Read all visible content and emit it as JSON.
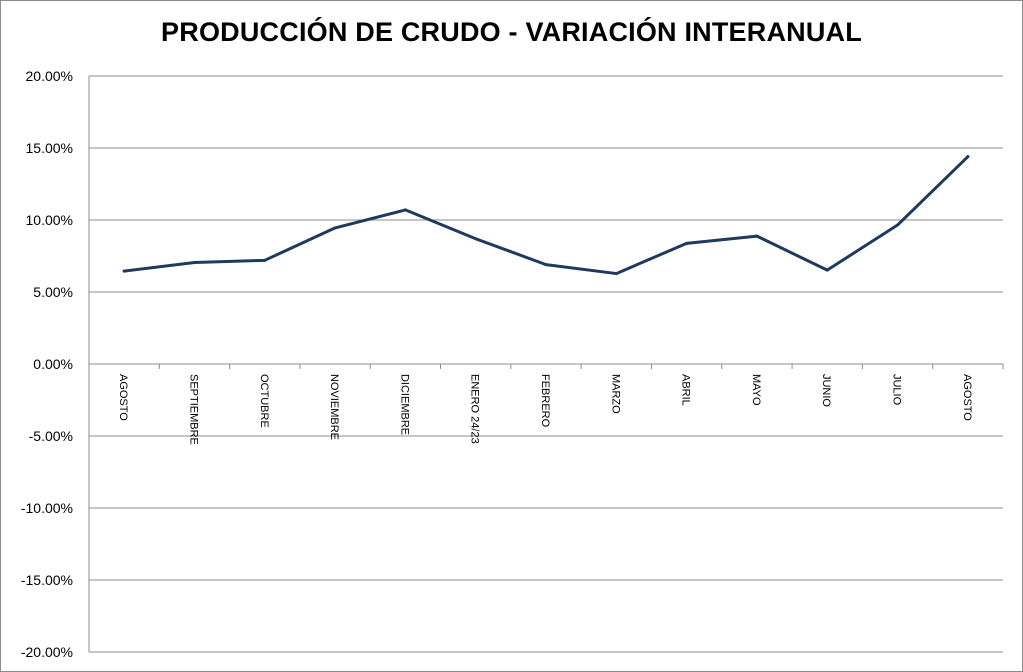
{
  "chart_data": {
    "type": "line",
    "title": "PRODUCCIÓN DE CRUDO - VARIACIÓN INTERANUAL",
    "xlabel": "",
    "ylabel": "",
    "categories": [
      "AGOSTO",
      "SEPTIEMBRE",
      "OCTUBRE",
      "NOVIEMBRE",
      "DICIEMBRE",
      "ENERO 24/23",
      "FEBRERO",
      "MARZO",
      "ABRIL",
      "MAYO",
      "JUNIO",
      "JULIO",
      "AGOSTO"
    ],
    "series": [
      {
        "values": [
          6.45,
          7.05,
          7.2,
          9.45,
          10.7,
          8.7,
          6.9,
          6.28,
          8.38,
          8.88,
          6.52,
          9.65,
          14.4
        ],
        "color": "#1f3a5f"
      }
    ],
    "ylim": [
      -20,
      20
    ],
    "yticks": [
      20,
      15,
      10,
      5,
      0,
      -5,
      -10,
      -15,
      -20
    ],
    "ytick_labels": [
      "20.00%",
      "15.00%",
      "10.00%",
      "5.00%",
      "0.00%",
      "-5.00%",
      "-10.00%",
      "-15.00%",
      "-20.00%"
    ],
    "grid": true,
    "legend": "none"
  }
}
